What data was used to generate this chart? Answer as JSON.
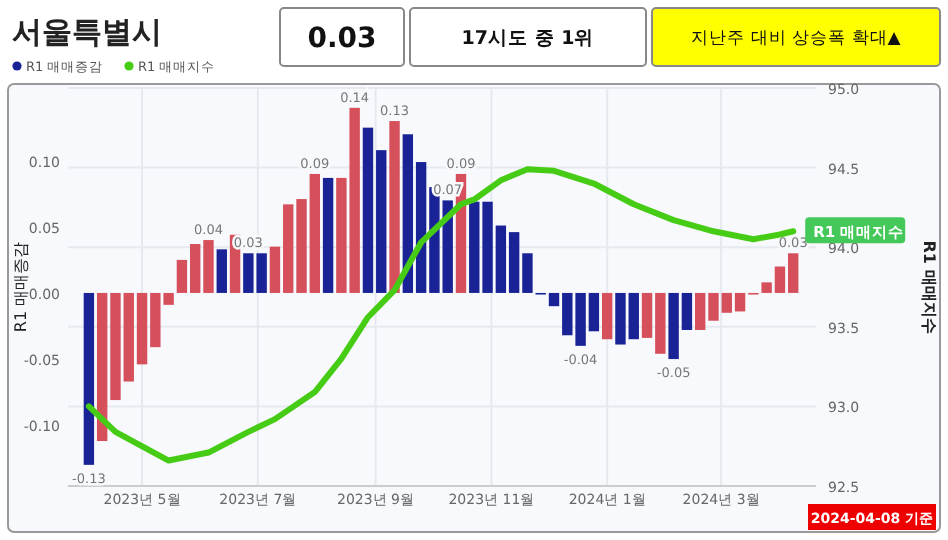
{
  "chart_data": {
    "type": "bar",
    "title": "서울특별시",
    "ylabel": "R1 매매증감",
    "y2label": "R1 매매지수",
    "annotations": [
      "0.03",
      "17시도 중 1위",
      "지난주 대비 상승폭 확대▲",
      "2024-04-08 기준"
    ],
    "x": [
      "2023-04-03",
      "2023-04-10",
      "2023-04-17",
      "2023-04-24",
      "2023-05-01",
      "2023-05-08",
      "2023-05-15",
      "2023-05-22",
      "2023-05-29",
      "2023-06-05",
      "2023-06-12",
      "2023-06-19",
      "2023-06-26",
      "2023-07-03",
      "2023-07-10",
      "2023-07-17",
      "2023-07-24",
      "2023-07-31",
      "2023-08-07",
      "2023-08-14",
      "2023-08-21",
      "2023-08-28",
      "2023-09-04",
      "2023-09-11",
      "2023-09-18",
      "2023-09-25",
      "2023-10-02",
      "2023-10-09",
      "2023-10-16",
      "2023-10-23",
      "2023-10-30",
      "2023-11-06",
      "2023-11-13",
      "2023-11-20",
      "2023-11-27",
      "2023-12-04",
      "2023-12-11",
      "2023-12-18",
      "2023-12-25",
      "2024-01-01",
      "2024-01-08",
      "2024-01-15",
      "2024-01-22",
      "2024-01-29",
      "2024-02-05",
      "2024-02-12",
      "2024-02-19",
      "2024-02-26",
      "2024-03-04",
      "2024-03-11",
      "2024-03-18",
      "2024-03-25",
      "2024-04-01",
      "2024-04-08"
    ],
    "series": [
      {
        "name": "R1 매매증감",
        "values": [
          -0.13,
          -0.112,
          -0.081,
          -0.067,
          -0.054,
          -0.041,
          -0.009,
          0.025,
          0.037,
          0.04,
          0.033,
          0.044,
          0.03,
          0.03,
          0.035,
          0.067,
          0.071,
          0.09,
          0.087,
          0.087,
          0.14,
          0.125,
          0.108,
          0.13,
          0.12,
          0.099,
          0.08,
          0.07,
          0.09,
          0.069,
          0.069,
          0.051,
          0.046,
          0.03,
          0,
          -0.01,
          -0.032,
          -0.04,
          -0.029,
          -0.035,
          -0.039,
          -0.035,
          -0.034,
          -0.046,
          -0.05,
          -0.028,
          -0.028,
          -0.021,
          -0.015,
          -0.014,
          0,
          0.008,
          0.02,
          0.03
        ],
        "colors": [
          "#1a2396",
          "#d6505c",
          "#d6505c",
          "#d6505c",
          "#d6505c",
          "#d6505c",
          "#d6505c",
          "#d6505c",
          "#d6505c",
          "#d6505c",
          "#1a2396",
          "#d6505c",
          "#1a2396",
          "#1a2396",
          "#d6505c",
          "#d6505c",
          "#d6505c",
          "#d6505c",
          "#1a2396",
          "#d6505c",
          "#d6505c",
          "#1a2396",
          "#1a2396",
          "#d6505c",
          "#1a2396",
          "#1a2396",
          "#1a2396",
          "#1a2396",
          "#d6505c",
          "#1a2396",
          "#1a2396",
          "#1a2396",
          "#1a2396",
          "#1a2396",
          "#1a2396",
          "#1a2396",
          "#1a2396",
          "#1a2396",
          "#1a2396",
          "#d6505c",
          "#1a2396",
          "#1a2396",
          "#d6505c",
          "#d6505c",
          "#1a2396",
          "#1a2396",
          "#d6505c",
          "#d6505c",
          "#d6505c",
          "#d6505c",
          "#d6505c",
          "#d6505c",
          "#d6505c",
          "#d6505c"
        ],
        "value_labels": [
          "-0.13",
          null,
          null,
          null,
          null,
          null,
          null,
          null,
          null,
          "0.04",
          null,
          null,
          "0.03",
          null,
          null,
          null,
          null,
          "0.09",
          null,
          null,
          "0.14",
          null,
          null,
          "0.13",
          null,
          null,
          null,
          "0.07",
          "0.09",
          null,
          null,
          null,
          null,
          null,
          null,
          null,
          null,
          "-0.04",
          null,
          null,
          null,
          null,
          null,
          null,
          "-0.05",
          null,
          null,
          null,
          null,
          null,
          null,
          null,
          null,
          "0.03"
        ]
      },
      {
        "name": "R1 매매지수",
        "type": "line",
        "axis": "y2",
        "color": "#47cc16",
        "x": [
          "2023-04-03",
          "2023-04-17",
          "2023-05-15",
          "2023-06-05",
          "2023-06-26",
          "2023-07-10",
          "2023-07-31",
          "2023-08-14",
          "2023-08-28",
          "2023-09-11",
          "2023-09-25",
          "2023-10-16",
          "2023-10-23",
          "2023-11-06",
          "2023-11-20",
          "2023-12-04",
          "2023-12-25",
          "2024-01-15",
          "2024-02-05",
          "2024-02-26",
          "2024-03-18",
          "2024-04-01",
          "2024-04-08"
        ],
        "values": [
          93.0,
          92.84,
          92.66,
          92.71,
          92.84,
          92.92,
          93.09,
          93.3,
          93.56,
          93.73,
          94.03,
          94.27,
          94.3,
          94.42,
          94.49,
          94.48,
          94.4,
          94.27,
          94.17,
          94.1,
          94.05,
          94.08,
          94.1
        ]
      }
    ],
    "xlim": [
      "2023-03-23",
      "2024-04-20"
    ],
    "xticks": [
      {
        "value": "2023-05-01",
        "label": "2023년 5월"
      },
      {
        "value": "2023-07-01",
        "label": "2023년 7월"
      },
      {
        "value": "2023-09-01",
        "label": "2023년 9월"
      },
      {
        "value": "2023-11-01",
        "label": "2023년 11월"
      },
      {
        "value": "2024-01-01",
        "label": "2024년 1월"
      },
      {
        "value": "2024-03-01",
        "label": "2024년 3월"
      }
    ],
    "ylim": [
      -0.146,
      0.155
    ],
    "yticks": [
      {
        "value": -0.1,
        "label": "-0.10"
      },
      {
        "value": -0.05,
        "label": "-0.05"
      },
      {
        "value": 0,
        "label": "0.00"
      },
      {
        "value": 0.05,
        "label": "0.05"
      },
      {
        "value": 0.1,
        "label": "0.10"
      }
    ],
    "y2lim": [
      92.5,
      95.0
    ],
    "y2ticks": [
      {
        "value": 92.5,
        "label": "92.5"
      },
      {
        "value": 93,
        "label": "93.0"
      },
      {
        "value": 93.5,
        "label": "93.5"
      },
      {
        "value": 94,
        "label": "94.0"
      },
      {
        "value": 94.5,
        "label": "94.5"
      },
      {
        "value": 95,
        "label": "95.0"
      }
    ],
    "grid": true,
    "legend": "top left"
  }
}
